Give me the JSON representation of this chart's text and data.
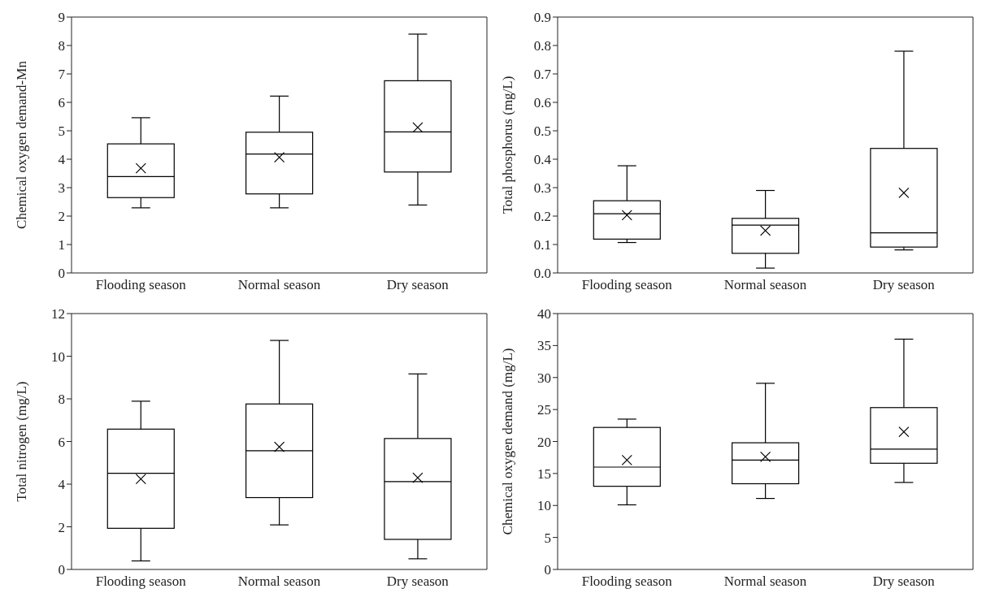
{
  "chart_data": [
    {
      "type": "box",
      "ylabel": "Chemical oxygen demand-Mn",
      "categories": [
        "Flooding season",
        "Normal season",
        "Dry season"
      ],
      "color": "#000000",
      "ylim": [
        0,
        9
      ],
      "yticks": [
        0,
        1,
        2,
        3,
        4,
        5,
        6,
        7,
        8,
        9
      ],
      "boxes": [
        {
          "low": 2.29,
          "q1": 2.65,
          "median": 3.39,
          "q3": 4.54,
          "high": 5.46,
          "mean": 3.68
        },
        {
          "low": 2.29,
          "q1": 2.78,
          "median": 4.18,
          "q3": 4.95,
          "high": 6.22,
          "mean": 4.07
        },
        {
          "low": 2.39,
          "q1": 3.55,
          "median": 4.96,
          "q3": 6.76,
          "high": 8.4,
          "mean": 5.12
        }
      ]
    },
    {
      "type": "box",
      "ylabel": "Total phosphorus (mg/L)",
      "categories": [
        "Flooding season",
        "Normal season",
        "Dry season"
      ],
      "color": "#000000",
      "ylim": [
        0,
        0.9
      ],
      "yticks": [
        {
          "value": 0,
          "label": "0.0"
        },
        0.1,
        0.2,
        0.3,
        0.4,
        0.5,
        0.6,
        0.7,
        0.8,
        0.9
      ],
      "boxes": [
        {
          "low": 0.107,
          "q1": 0.119,
          "median": 0.208,
          "q3": 0.254,
          "high": 0.377,
          "mean": 0.203
        },
        {
          "low": 0.017,
          "q1": 0.069,
          "median": 0.168,
          "q3": 0.192,
          "high": 0.29,
          "mean": 0.149
        },
        {
          "low": 0.081,
          "q1": 0.091,
          "median": 0.141,
          "q3": 0.438,
          "high": 0.78,
          "mean": 0.282
        }
      ]
    },
    {
      "type": "box",
      "ylabel": "Total nitrogen (mg/L)",
      "categories": [
        "Flooding season",
        "Normal season",
        "Dry season"
      ],
      "color": "#000000",
      "ylim": [
        0,
        12
      ],
      "yticks": [
        0,
        2,
        4,
        6,
        8,
        10,
        12
      ],
      "boxes": [
        {
          "low": 0.4,
          "q1": 1.93,
          "median": 4.51,
          "q3": 6.58,
          "high": 7.89,
          "mean": 4.24
        },
        {
          "low": 2.09,
          "q1": 3.37,
          "median": 5.57,
          "q3": 7.76,
          "high": 10.74,
          "mean": 5.75
        },
        {
          "low": 0.5,
          "q1": 1.41,
          "median": 4.12,
          "q3": 6.14,
          "high": 9.17,
          "mean": 4.3
        }
      ]
    },
    {
      "type": "box",
      "ylabel": "Chemical oxygen demand (mg/L)",
      "categories": [
        "Flooding season",
        "Normal season",
        "Dry season"
      ],
      "color": "#000000",
      "ylim": [
        0,
        40
      ],
      "yticks": [
        0,
        5,
        10,
        15,
        20,
        25,
        30,
        35,
        40
      ],
      "boxes": [
        {
          "low": 10.1,
          "q1": 13.0,
          "median": 16.0,
          "q3": 22.2,
          "high": 23.5,
          "mean": 17.1
        },
        {
          "low": 11.1,
          "q1": 13.4,
          "median": 17.1,
          "q3": 19.8,
          "high": 29.1,
          "mean": 17.6
        },
        {
          "low": 13.6,
          "q1": 16.6,
          "median": 18.8,
          "q3": 25.3,
          "high": 36.0,
          "mean": 21.5
        }
      ]
    }
  ]
}
